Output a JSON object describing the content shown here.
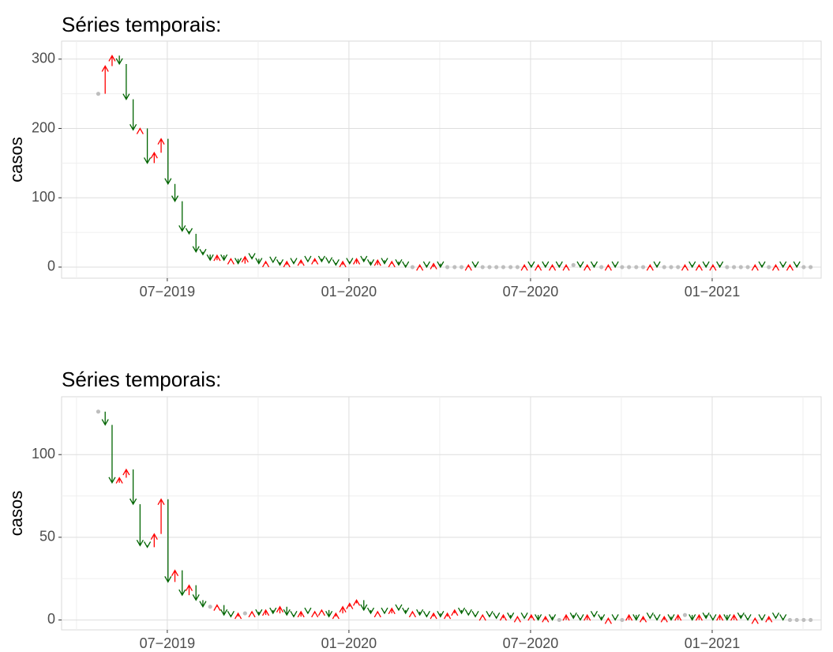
{
  "chart_data": [
    {
      "type": "arrow-series",
      "title": "Séries temporais:",
      "y_label": "casos",
      "up_color": "#ff0000",
      "down_color": "#006400",
      "flat_color": "#bebebe",
      "grid": true,
      "xlim": [
        2019.209,
        2021.3
      ],
      "xticks": [
        {
          "value": 2019.5,
          "label": "07−2019"
        },
        {
          "value": 2020.0,
          "label": "01−2020"
        },
        {
          "value": 2020.5,
          "label": "07−2020"
        },
        {
          "value": 2021.0,
          "label": "01−2021"
        }
      ],
      "ylim": [
        -16,
        326
      ],
      "yticks": [
        0,
        100,
        200,
        300
      ],
      "x": [
        2019.31,
        2019.329,
        2019.348,
        2019.368,
        2019.387,
        2019.406,
        2019.425,
        2019.445,
        2019.464,
        2019.483,
        2019.502,
        2019.521,
        2019.541,
        2019.56,
        2019.579,
        2019.598,
        2019.618,
        2019.637,
        2019.656,
        2019.675,
        2019.695,
        2019.714,
        2019.733,
        2019.752,
        2019.771,
        2019.791,
        2019.81,
        2019.829,
        2019.848,
        2019.868,
        2019.887,
        2019.906,
        2019.925,
        2019.945,
        2019.964,
        2019.983,
        2020.002,
        2020.021,
        2020.041,
        2020.06,
        2020.079,
        2020.098,
        2020.118,
        2020.137,
        2020.156,
        2020.175,
        2020.195,
        2020.214,
        2020.233,
        2020.252,
        2020.271,
        2020.291,
        2020.31,
        2020.329,
        2020.348,
        2020.368,
        2020.387,
        2020.406,
        2020.425,
        2020.445,
        2020.464,
        2020.483,
        2020.502,
        2020.521,
        2020.541,
        2020.56,
        2020.579,
        2020.598,
        2020.618,
        2020.637,
        2020.656,
        2020.675,
        2020.695,
        2020.714,
        2020.733,
        2020.752,
        2020.771,
        2020.791,
        2020.81,
        2020.829,
        2020.848,
        2020.868,
        2020.887,
        2020.906,
        2020.925,
        2020.945,
        2020.964,
        2020.983,
        2021.002,
        2021.021,
        2021.041,
        2021.06,
        2021.079,
        2021.098,
        2021.118,
        2021.137,
        2021.156,
        2021.175,
        2021.195,
        2021.214,
        2021.233,
        2021.252,
        2021.271
      ],
      "values": [
        250,
        290,
        305,
        293,
        242,
        198,
        200,
        150,
        165,
        185,
        120,
        95,
        52,
        48,
        22,
        18,
        10,
        17,
        10,
        12,
        5,
        15,
        12,
        5,
        8,
        7,
        3,
        8,
        5,
        10,
        8,
        12,
        8,
        6,
        3,
        8,
        5,
        12,
        8,
        3,
        10,
        5,
        8,
        3,
        0,
        0,
        3,
        0,
        5,
        0,
        0,
        0,
        0,
        3,
        0,
        0,
        0,
        0,
        0,
        0,
        0,
        3,
        0,
        3,
        0,
        3,
        0,
        3,
        3,
        0,
        3,
        0,
        0,
        3,
        0,
        0,
        0,
        0,
        0,
        3,
        0,
        0,
        0,
        0,
        3,
        0,
        3,
        0,
        3,
        0,
        0,
        0,
        0,
        0,
        3,
        0,
        0,
        3,
        0,
        3,
        0,
        0,
        0
      ]
    },
    {
      "type": "arrow-series",
      "title": "Séries temporais:",
      "y_label": "casos",
      "up_color": "#ff0000",
      "down_color": "#006400",
      "flat_color": "#bebebe",
      "grid": true,
      "xlim": [
        2019.209,
        2021.3
      ],
      "xticks": [
        {
          "value": 2019.5,
          "label": "07−2019"
        },
        {
          "value": 2020.0,
          "label": "01−2020"
        },
        {
          "value": 2020.5,
          "label": "07−2020"
        },
        {
          "value": 2021.0,
          "label": "01−2021"
        }
      ],
      "ylim": [
        -6,
        135
      ],
      "yticks": [
        0,
        50,
        100
      ],
      "x": [
        2019.31,
        2019.329,
        2019.348,
        2019.368,
        2019.387,
        2019.406,
        2019.425,
        2019.445,
        2019.464,
        2019.483,
        2019.502,
        2019.521,
        2019.541,
        2019.56,
        2019.579,
        2019.598,
        2019.618,
        2019.637,
        2019.656,
        2019.675,
        2019.695,
        2019.714,
        2019.733,
        2019.752,
        2019.771,
        2019.791,
        2019.81,
        2019.829,
        2019.848,
        2019.868,
        2019.887,
        2019.906,
        2019.925,
        2019.945,
        2019.964,
        2019.983,
        2020.002,
        2020.021,
        2020.041,
        2020.06,
        2020.079,
        2020.098,
        2020.118,
        2020.137,
        2020.156,
        2020.175,
        2020.195,
        2020.214,
        2020.233,
        2020.252,
        2020.271,
        2020.291,
        2020.31,
        2020.329,
        2020.348,
        2020.368,
        2020.387,
        2020.406,
        2020.425,
        2020.445,
        2020.464,
        2020.483,
        2020.502,
        2020.521,
        2020.541,
        2020.56,
        2020.579,
        2020.598,
        2020.618,
        2020.637,
        2020.656,
        2020.675,
        2020.695,
        2020.714,
        2020.733,
        2020.752,
        2020.771,
        2020.791,
        2020.81,
        2020.829,
        2020.848,
        2020.868,
        2020.887,
        2020.906,
        2020.925,
        2020.945,
        2020.964,
        2020.983,
        2021.002,
        2021.021,
        2021.041,
        2021.06,
        2021.079,
        2021.098,
        2021.118,
        2021.137,
        2021.156,
        2021.175,
        2021.195,
        2021.214,
        2021.233,
        2021.252,
        2021.271
      ],
      "values": [
        126,
        118,
        83,
        86,
        91,
        70,
        45,
        44,
        52,
        73,
        23,
        30,
        15,
        21,
        12,
        8,
        8,
        9,
        3,
        2,
        4,
        4,
        5,
        3,
        6,
        4,
        8,
        3,
        2,
        5,
        4,
        5,
        6,
        2,
        4,
        8,
        10,
        12,
        6,
        4,
        5,
        4,
        7,
        6,
        4,
        5,
        3,
        2,
        4,
        2,
        4,
        6,
        4,
        3,
        2,
        3,
        2,
        1,
        3,
        1,
        2,
        1,
        3,
        0,
        2,
        0,
        0,
        3,
        1,
        0,
        3,
        2,
        0,
        1,
        0,
        0,
        3,
        0,
        2,
        1,
        0,
        2,
        0,
        3,
        3,
        0,
        3,
        1,
        0,
        3,
        0,
        3,
        1,
        0,
        1,
        0,
        2,
        1,
        0,
        0,
        0,
        0,
        0
      ]
    }
  ]
}
